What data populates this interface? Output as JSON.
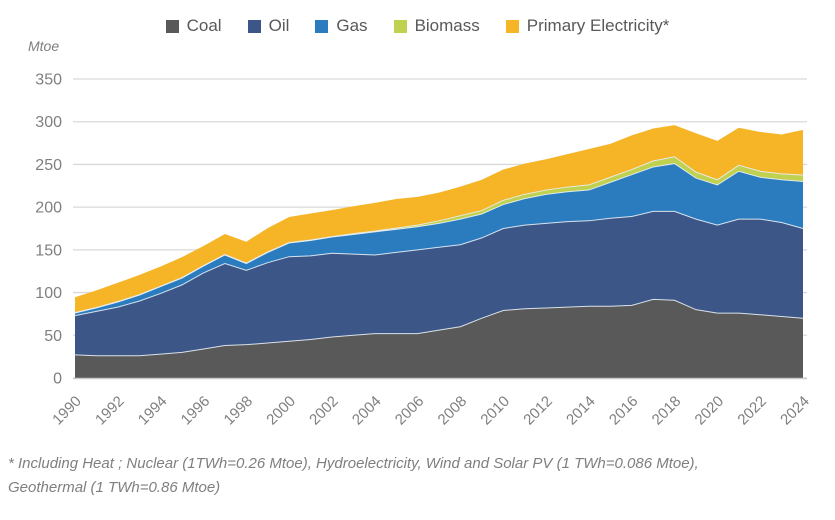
{
  "unit_label": "Mtoe",
  "legend": {
    "items": [
      {
        "id": "coal",
        "label": "Coal",
        "color": "#595959"
      },
      {
        "id": "oil",
        "label": "Oil",
        "color": "#3c5787"
      },
      {
        "id": "gas",
        "label": "Gas",
        "color": "#2b7cbe"
      },
      {
        "id": "biomass",
        "label": "Biomass",
        "color": "#c0d04f"
      },
      {
        "id": "primary-electricity",
        "label": "Primary Electricity*",
        "color": "#f5b527"
      }
    ]
  },
  "footnote": {
    "line1": "* Including Heat ; Nuclear (1TWh=0.26 Mtoe), Hydroelectricity, Wind and Solar PV (1 TWh=0.086 Mtoe),",
    "line2": "Geothermal (1 TWh=0.86 Mtoe)"
  },
  "chart_data": {
    "type": "area",
    "stacked": true,
    "title": "",
    "ylabel": "Mtoe",
    "xlabel": "",
    "ylim": [
      0,
      350
    ],
    "ytick_step": 50,
    "yticks": [
      0,
      50,
      100,
      150,
      200,
      250,
      300,
      350
    ],
    "grid": true,
    "legend_position": "top",
    "x_tick_label_every": 2,
    "x": [
      1990,
      1991,
      1992,
      1993,
      1994,
      1995,
      1996,
      1997,
      1998,
      1999,
      2000,
      2001,
      2002,
      2003,
      2004,
      2005,
      2006,
      2007,
      2008,
      2009,
      2010,
      2011,
      2012,
      2013,
      2014,
      2015,
      2016,
      2017,
      2018,
      2019,
      2020,
      2021,
      2022,
      2023,
      2024
    ],
    "series": [
      {
        "name": "Coal",
        "color": "#595959",
        "values": [
          27,
          26,
          26,
          26,
          28,
          30,
          34,
          38,
          39,
          41,
          43,
          45,
          48,
          50,
          52,
          52,
          52,
          56,
          60,
          70,
          79,
          81,
          82,
          83,
          84,
          84,
          85,
          92,
          91,
          80,
          76,
          76,
          74,
          72,
          70
        ]
      },
      {
        "name": "Oil",
        "color": "#3c5787",
        "values": [
          46,
          52,
          57,
          64,
          71,
          79,
          89,
          96,
          87,
          94,
          99,
          98,
          98,
          95,
          92,
          95,
          98,
          97,
          96,
          94,
          96,
          98,
          99,
          100,
          100,
          103,
          104,
          103,
          104,
          106,
          103,
          110,
          112,
          110,
          105
        ]
      },
      {
        "name": "Gas",
        "color": "#2b7cbe",
        "values": [
          3,
          4,
          6,
          7,
          8,
          8,
          8,
          10,
          8,
          12,
          16,
          18,
          19,
          23,
          27,
          27,
          27,
          28,
          30,
          28,
          28,
          31,
          34,
          35,
          36,
          42,
          49,
          52,
          56,
          48,
          47,
          56,
          49,
          50,
          55
        ]
      },
      {
        "name": "Biomass",
        "color": "#c0d04f",
        "values": [
          0.5,
          0.5,
          0.5,
          0.5,
          0.5,
          0.5,
          0.5,
          0.5,
          0.5,
          0.5,
          0.5,
          0.5,
          0.5,
          1,
          1,
          1.5,
          2,
          3,
          4,
          4,
          5,
          5,
          5,
          5.5,
          6,
          6,
          6,
          7,
          8,
          7,
          6,
          7,
          7,
          7,
          7.5
        ]
      },
      {
        "name": "Primary Electricity*",
        "color": "#f5b527",
        "values": [
          18,
          20,
          22,
          23,
          23,
          24,
          23,
          24,
          25,
          28,
          30,
          31,
          31,
          32,
          33,
          34,
          33,
          33,
          34,
          36,
          36,
          36,
          36,
          38.5,
          42,
          39,
          40,
          38,
          37,
          45.5,
          45.5,
          44,
          46,
          46,
          53
        ]
      }
    ],
    "colors": {
      "grid": "#d9d9d9",
      "axis_line": "#c9c9c9",
      "tick_text": "#7f7f7f",
      "series_separator": "#e8eef5"
    }
  }
}
